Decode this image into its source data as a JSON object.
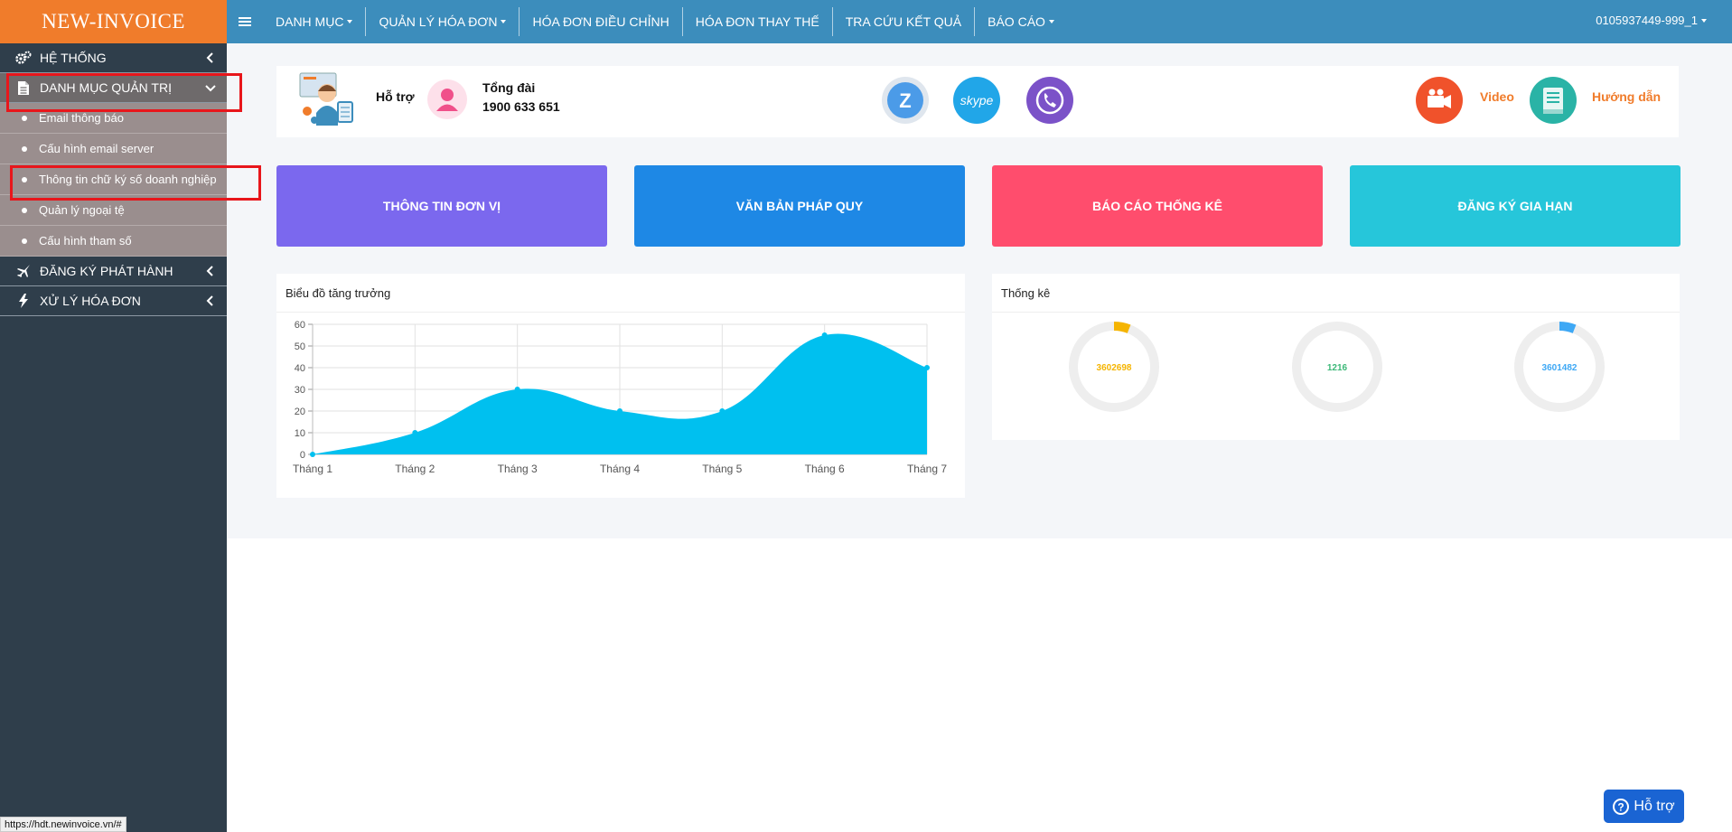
{
  "sidebar": {
    "logo": "NEW-INVOICE",
    "items": [
      {
        "label": "HỆ THỐNG"
      },
      {
        "label": "DANH MỤC QUẢN TRỊ"
      },
      {
        "label": "ĐĂNG KÝ PHÁT HÀNH"
      },
      {
        "label": "XỬ LÝ HÓA ĐƠN"
      }
    ],
    "submenu": [
      {
        "label": "Email thông báo"
      },
      {
        "label": "Cấu hình email server"
      },
      {
        "label": "Thông tin chữ ký số doanh nghiệp"
      },
      {
        "label": "Quản lý ngoại tệ"
      },
      {
        "label": "Cấu hình tham số"
      }
    ]
  },
  "header": {
    "nav": [
      {
        "label": "DANH MỤC"
      },
      {
        "label": "QUẢN LÝ HÓA ĐƠN"
      },
      {
        "label": "HÓA ĐƠN ĐIỀU CHỈNH"
      },
      {
        "label": "HÓA ĐƠN THAY THẾ"
      },
      {
        "label": "TRA CỨU KẾT QUẢ"
      },
      {
        "label": "BÁO CÁO"
      }
    ],
    "user": "0105937449-999_1"
  },
  "support": {
    "support_label": "Hỗ trợ",
    "hotline_label": "Tổng đài",
    "hotline_number": "1900 633 651",
    "video_label": "Video",
    "guide_label": "Hướng dẫn"
  },
  "tiles": [
    {
      "label": "THÔNG TIN ĐƠN VỊ",
      "color": "#7b68ee"
    },
    {
      "label": "VĂN BẢN PHÁP QUY",
      "color": "#1e88e5"
    },
    {
      "label": "BÁO CÁO THỐNG KÊ",
      "color": "#ff4d6d"
    },
    {
      "label": "ĐĂNG KÝ GIA HẠN",
      "color": "#26c6da"
    }
  ],
  "growth_panel": {
    "title": "Biểu đồ tăng trưởng"
  },
  "stats_panel": {
    "title": "Thống kê",
    "donuts": [
      {
        "value": "3602698",
        "color": "#f5b400",
        "fraction": 0.06
      },
      {
        "value": "1216",
        "color": "#3cb878",
        "fraction": 0.0
      },
      {
        "value": "3601482",
        "color": "#3ea8f5",
        "fraction": 0.06
      }
    ]
  },
  "chart_data": {
    "type": "area",
    "categories": [
      "Tháng 1",
      "Tháng 2",
      "Tháng 3",
      "Tháng 4",
      "Tháng 5",
      "Tháng 6",
      "Tháng 7"
    ],
    "values": [
      0,
      10,
      30,
      20,
      20,
      55,
      40
    ],
    "yticks": [
      "0",
      "10",
      "20",
      "30",
      "40",
      "50",
      "60"
    ],
    "ylim": [
      0,
      60
    ],
    "grid": true,
    "color": "#00c0ef"
  },
  "help_button": {
    "label": "Hỗ trợ"
  },
  "status_url": "https://hdt.newinvoice.vn/#"
}
